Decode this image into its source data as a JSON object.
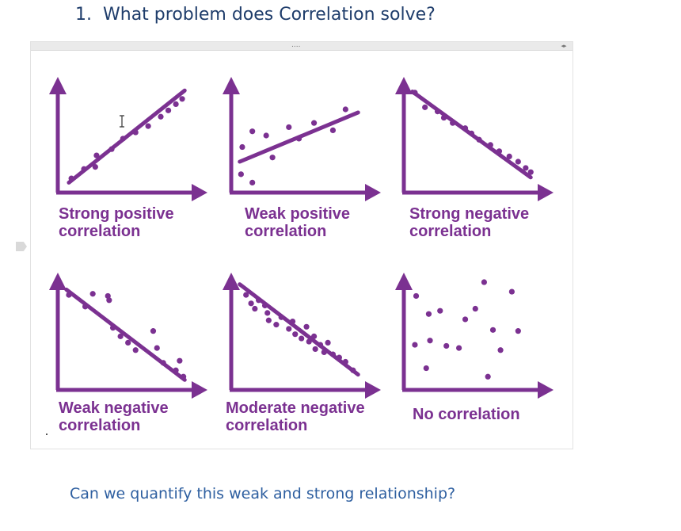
{
  "slide": {
    "heading_number": "1.",
    "heading_text": "What problem does Correlation solve?",
    "question": "Can we quantify this weak and strong relationship?"
  },
  "colors": {
    "plot_purple": "#7b3191",
    "heading_blue": "#1f3d6b",
    "question_blue": "#2e5fa0"
  },
  "icons": {
    "cursor": "i-beam-cursor-icon",
    "side_tab": "slide-tab-icon",
    "pager": "frame-pager-icon"
  },
  "frame": {
    "grip": "....",
    "pager": "◂▸"
  },
  "plots": [
    {
      "label_lines": [
        "Strong positive",
        "correlation"
      ],
      "trend": [
        [
          0.05,
          0.05
        ],
        [
          0.97,
          0.93
        ]
      ],
      "points": [
        [
          0.07,
          0.09
        ],
        [
          0.17,
          0.18
        ],
        [
          0.26,
          0.2
        ],
        [
          0.27,
          0.31
        ],
        [
          0.39,
          0.37
        ],
        [
          0.48,
          0.47
        ],
        [
          0.58,
          0.53
        ],
        [
          0.68,
          0.59
        ],
        [
          0.78,
          0.68
        ],
        [
          0.84,
          0.74
        ],
        [
          0.9,
          0.8
        ],
        [
          0.95,
          0.85
        ]
      ]
    },
    {
      "label_lines": [
        "Weak positive",
        "correlation"
      ],
      "trend": [
        [
          0.03,
          0.25
        ],
        [
          0.97,
          0.72
        ]
      ],
      "points": [
        [
          0.04,
          0.13
        ],
        [
          0.05,
          0.39
        ],
        [
          0.13,
          0.05
        ],
        [
          0.13,
          0.54
        ],
        [
          0.24,
          0.5
        ],
        [
          0.29,
          0.29
        ],
        [
          0.42,
          0.58
        ],
        [
          0.5,
          0.47
        ],
        [
          0.62,
          0.62
        ],
        [
          0.77,
          0.55
        ],
        [
          0.87,
          0.75
        ]
      ]
    },
    {
      "label_lines": [
        "Strong negative",
        "correlation"
      ],
      "trend": [
        [
          0.03,
          0.92
        ],
        [
          0.97,
          0.1
        ]
      ],
      "points": [
        [
          0.05,
          0.91
        ],
        [
          0.13,
          0.77
        ],
        [
          0.23,
          0.73
        ],
        [
          0.28,
          0.67
        ],
        [
          0.35,
          0.62
        ],
        [
          0.45,
          0.57
        ],
        [
          0.5,
          0.52
        ],
        [
          0.56,
          0.46
        ],
        [
          0.65,
          0.41
        ],
        [
          0.72,
          0.35
        ],
        [
          0.8,
          0.3
        ],
        [
          0.87,
          0.25
        ],
        [
          0.93,
          0.19
        ],
        [
          0.97,
          0.15
        ]
      ]
    },
    {
      "label_lines": [
        "Weak negative",
        "correlation"
      ],
      "trend": [
        [
          0.03,
          0.9
        ],
        [
          0.97,
          0.05
        ]
      ],
      "points": [
        [
          0.05,
          0.85
        ],
        [
          0.18,
          0.74
        ],
        [
          0.24,
          0.86
        ],
        [
          0.36,
          0.84
        ],
        [
          0.37,
          0.8
        ],
        [
          0.4,
          0.54
        ],
        [
          0.46,
          0.46
        ],
        [
          0.52,
          0.4
        ],
        [
          0.58,
          0.33
        ],
        [
          0.72,
          0.51
        ],
        [
          0.75,
          0.35
        ],
        [
          0.8,
          0.21
        ],
        [
          0.9,
          0.14
        ],
        [
          0.93,
          0.23
        ],
        [
          0.96,
          0.08
        ]
      ]
    },
    {
      "label_lines": [
        "Moderate negative",
        "correlation"
      ],
      "trend": [
        [
          0.03,
          0.95
        ],
        [
          0.97,
          0.1
        ]
      ],
      "points": [
        [
          0.08,
          0.85
        ],
        [
          0.12,
          0.77
        ],
        [
          0.15,
          0.72
        ],
        [
          0.18,
          0.8
        ],
        [
          0.23,
          0.75
        ],
        [
          0.25,
          0.68
        ],
        [
          0.26,
          0.61
        ],
        [
          0.32,
          0.57
        ],
        [
          0.36,
          0.64
        ],
        [
          0.42,
          0.53
        ],
        [
          0.45,
          0.6
        ],
        [
          0.47,
          0.48
        ],
        [
          0.52,
          0.44
        ],
        [
          0.56,
          0.55
        ],
        [
          0.58,
          0.41
        ],
        [
          0.62,
          0.46
        ],
        [
          0.63,
          0.34
        ],
        [
          0.67,
          0.38
        ],
        [
          0.7,
          0.31
        ],
        [
          0.73,
          0.4
        ],
        [
          0.77,
          0.29
        ],
        [
          0.82,
          0.26
        ],
        [
          0.87,
          0.22
        ],
        [
          0.93,
          0.14
        ]
      ]
    },
    {
      "label_lines": [
        "No correlation"
      ],
      "trend": null,
      "points": [
        [
          0.05,
          0.38
        ],
        [
          0.06,
          0.84
        ],
        [
          0.14,
          0.16
        ],
        [
          0.16,
          0.67
        ],
        [
          0.17,
          0.42
        ],
        [
          0.25,
          0.7
        ],
        [
          0.3,
          0.37
        ],
        [
          0.4,
          0.35
        ],
        [
          0.45,
          0.62
        ],
        [
          0.53,
          0.72
        ],
        [
          0.6,
          0.97
        ],
        [
          0.63,
          0.08
        ],
        [
          0.67,
          0.52
        ],
        [
          0.73,
          0.33
        ],
        [
          0.82,
          0.88
        ],
        [
          0.87,
          0.51
        ]
      ]
    }
  ]
}
